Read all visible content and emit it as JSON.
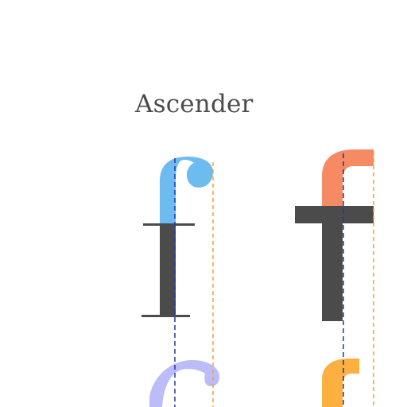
{
  "heading": {
    "label": "Ascender"
  },
  "colors": {
    "text": "#4b4b4b",
    "serif_ascender": "#6cbcf0",
    "serif_lower": "#bcbcf8",
    "sans_ascender": "#f58a63",
    "sans_lower": "#fbb03f",
    "guide_blue": "#1e34b4",
    "guide_orange": "#f3a22a",
    "background": "#ffffff"
  },
  "glyphs": [
    {
      "name": "serif-f",
      "style": "serif",
      "character": "f"
    },
    {
      "name": "sans-f",
      "style": "sans-serif",
      "character": "f"
    }
  ],
  "guides": [
    {
      "name": "stem-guide",
      "style": "dashed",
      "color": "guide_blue"
    },
    {
      "name": "ascender-extent-guide",
      "style": "dashed",
      "color": "guide_orange"
    }
  ]
}
